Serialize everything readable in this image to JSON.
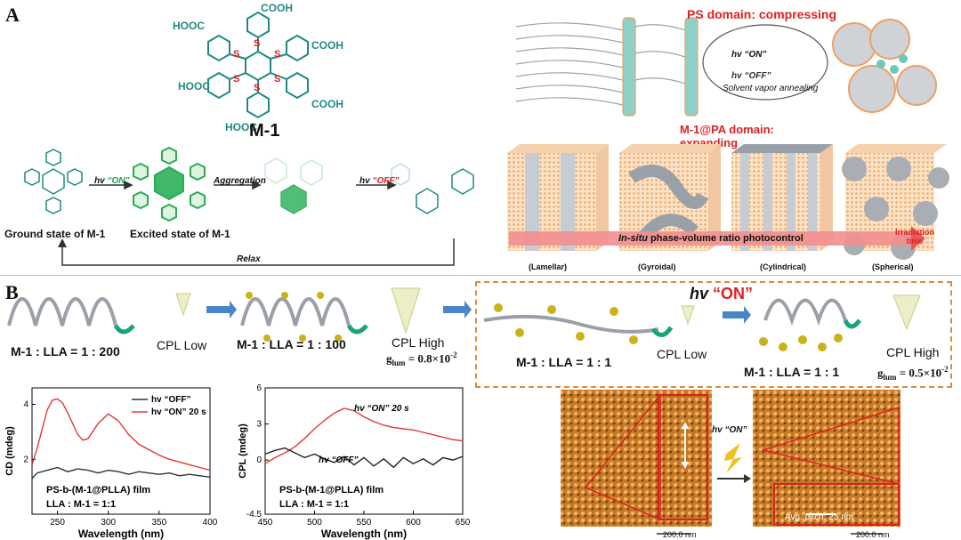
{
  "panel_a": {
    "letter": "A",
    "molecule": {
      "name": "M-1",
      "cooh_groups": [
        "COOH",
        "COOH",
        "COOH"
      ],
      "hooc_groups": [
        "HOOC",
        "HOOC",
        "HOOC"
      ],
      "sulfur": "S"
    },
    "states": {
      "ground": "Ground state of M-1",
      "excited": "Excited state of M-1"
    },
    "arrows": {
      "hv_on_prefix": "hv",
      "on_word": "“ON”",
      "aggregation": "Aggregation",
      "hv_off_prefix": "hv",
      "off_word": "“OFF”",
      "relax": "Relax"
    },
    "right": {
      "ps_domain": "PS domain: compressing",
      "m1pa_domain": "M-1@PA domain:",
      "m1pa_domain2": "expanding",
      "hv_on": "hv “ON”",
      "hv_off": "hv “OFF”",
      "solvent": "Solvent vapor annealing",
      "bar_label_1": "In-situ",
      "bar_label_2": " phase-volume ratio photocontrol",
      "irradiation": "Irradiation",
      "time": "time",
      "phases": [
        "(Lamellar)",
        "(Gyroidal)",
        "(Cylindrical)",
        "(Spherical)"
      ]
    }
  },
  "panel_b": {
    "letter": "B",
    "row": {
      "ratio_200": "M-1 : LLA = 1 : 200",
      "cpl_low_1": "CPL Low",
      "ratio_100": "M-1 : LLA = 1 : 100",
      "cpl_high_1": "CPL High",
      "glum_1": "g",
      "glum_1_sub": "lum",
      "glum_1_val": " = 0.8×10",
      "glum_1_exp": "-2",
      "hv_on_title_prefix": "hv ",
      "hv_on_title_word": "“ON”",
      "ratio_1_a": "M-1 : LLA = 1 : 1",
      "cpl_low_2": "CPL Low",
      "ratio_1_b": "M-1 : LLA = 1 : 1",
      "cpl_high_2": "CPL High",
      "glum_2": "g",
      "glum_2_sub": "lum",
      "glum_2_val": " = 0.5×10",
      "glum_2_exp": "-2"
    },
    "afm": {
      "hv_on": "hv “ON”",
      "pitch": "Avg. pitch: 25 nm",
      "scale_left": "200.0 nm",
      "scale_right": "200.0 nm"
    }
  },
  "chart_data": [
    {
      "type": "line",
      "xlabel": "Wavelength (nm)",
      "ylabel": "CD (mdeg)",
      "xlim": [
        225,
        400
      ],
      "ylim": [
        0,
        4.6
      ],
      "xticks": [
        250,
        300,
        350,
        400
      ],
      "yticks": [
        2,
        4
      ],
      "legend_position": "top-right",
      "annotations": [
        "PS-b-(M-1@PLLA) film",
        "LLA : M-1 = 1:1"
      ],
      "series": [
        {
          "name": "hv “OFF”",
          "color": "#333333",
          "x": [
            225,
            230,
            240,
            250,
            260,
            270,
            280,
            290,
            300,
            310,
            320,
            330,
            340,
            350,
            360,
            370,
            380,
            390,
            400
          ],
          "y": [
            1.3,
            1.5,
            1.6,
            1.7,
            1.55,
            1.65,
            1.6,
            1.5,
            1.6,
            1.55,
            1.45,
            1.55,
            1.5,
            1.45,
            1.5,
            1.4,
            1.45,
            1.4,
            1.35
          ]
        },
        {
          "name": "hv “ON” 20 s",
          "color": "#e53935",
          "x": [
            225,
            230,
            240,
            245,
            250,
            255,
            260,
            270,
            275,
            280,
            290,
            300,
            310,
            320,
            330,
            340,
            350,
            360,
            370,
            380,
            390,
            400
          ],
          "y": [
            1.8,
            2.4,
            3.8,
            4.15,
            4.2,
            4.05,
            3.7,
            2.9,
            2.7,
            2.75,
            3.3,
            3.65,
            3.4,
            2.9,
            2.55,
            2.35,
            2.15,
            2.0,
            1.9,
            1.8,
            1.7,
            1.6
          ]
        }
      ]
    },
    {
      "type": "line",
      "xlabel": "Wavelength (nm)",
      "ylabel": "CPL (mdeg)",
      "xlim": [
        450,
        650
      ],
      "ylim": [
        -4.5,
        6
      ],
      "xticks": [
        450,
        500,
        550,
        600,
        650
      ],
      "yticks": [
        -4.5,
        0,
        3,
        6
      ],
      "annotations": [
        "hv “ON” 20 s",
        "hv “OFF”",
        "PS-b-(M-1@PLLA) film",
        "LLA : M-1 = 1:1"
      ],
      "series": [
        {
          "name": "hv “ON” 20 s",
          "color": "#e53935",
          "x": [
            450,
            460,
            470,
            480,
            490,
            500,
            510,
            520,
            530,
            540,
            550,
            560,
            570,
            580,
            590,
            600,
            610,
            620,
            630,
            640,
            650
          ],
          "y": [
            -0.3,
            0.2,
            0.6,
            1.1,
            1.8,
            2.6,
            3.3,
            3.9,
            4.3,
            4.1,
            3.6,
            3.2,
            2.9,
            2.7,
            2.6,
            2.5,
            2.3,
            2.1,
            1.9,
            1.7,
            1.6
          ]
        },
        {
          "name": "hv “OFF”",
          "color": "#222222",
          "x": [
            450,
            460,
            470,
            480,
            490,
            500,
            510,
            520,
            530,
            540,
            550,
            560,
            570,
            580,
            590,
            600,
            610,
            620,
            630,
            640,
            650
          ],
          "y": [
            0.5,
            0.8,
            1.0,
            0.6,
            0.2,
            0.5,
            0.1,
            -0.2,
            0.3,
            -0.4,
            0.2,
            -0.5,
            0.1,
            -0.6,
            0.2,
            -0.3,
            0.1,
            -0.4,
            0.2,
            0.0,
            0.3
          ]
        }
      ]
    }
  ]
}
